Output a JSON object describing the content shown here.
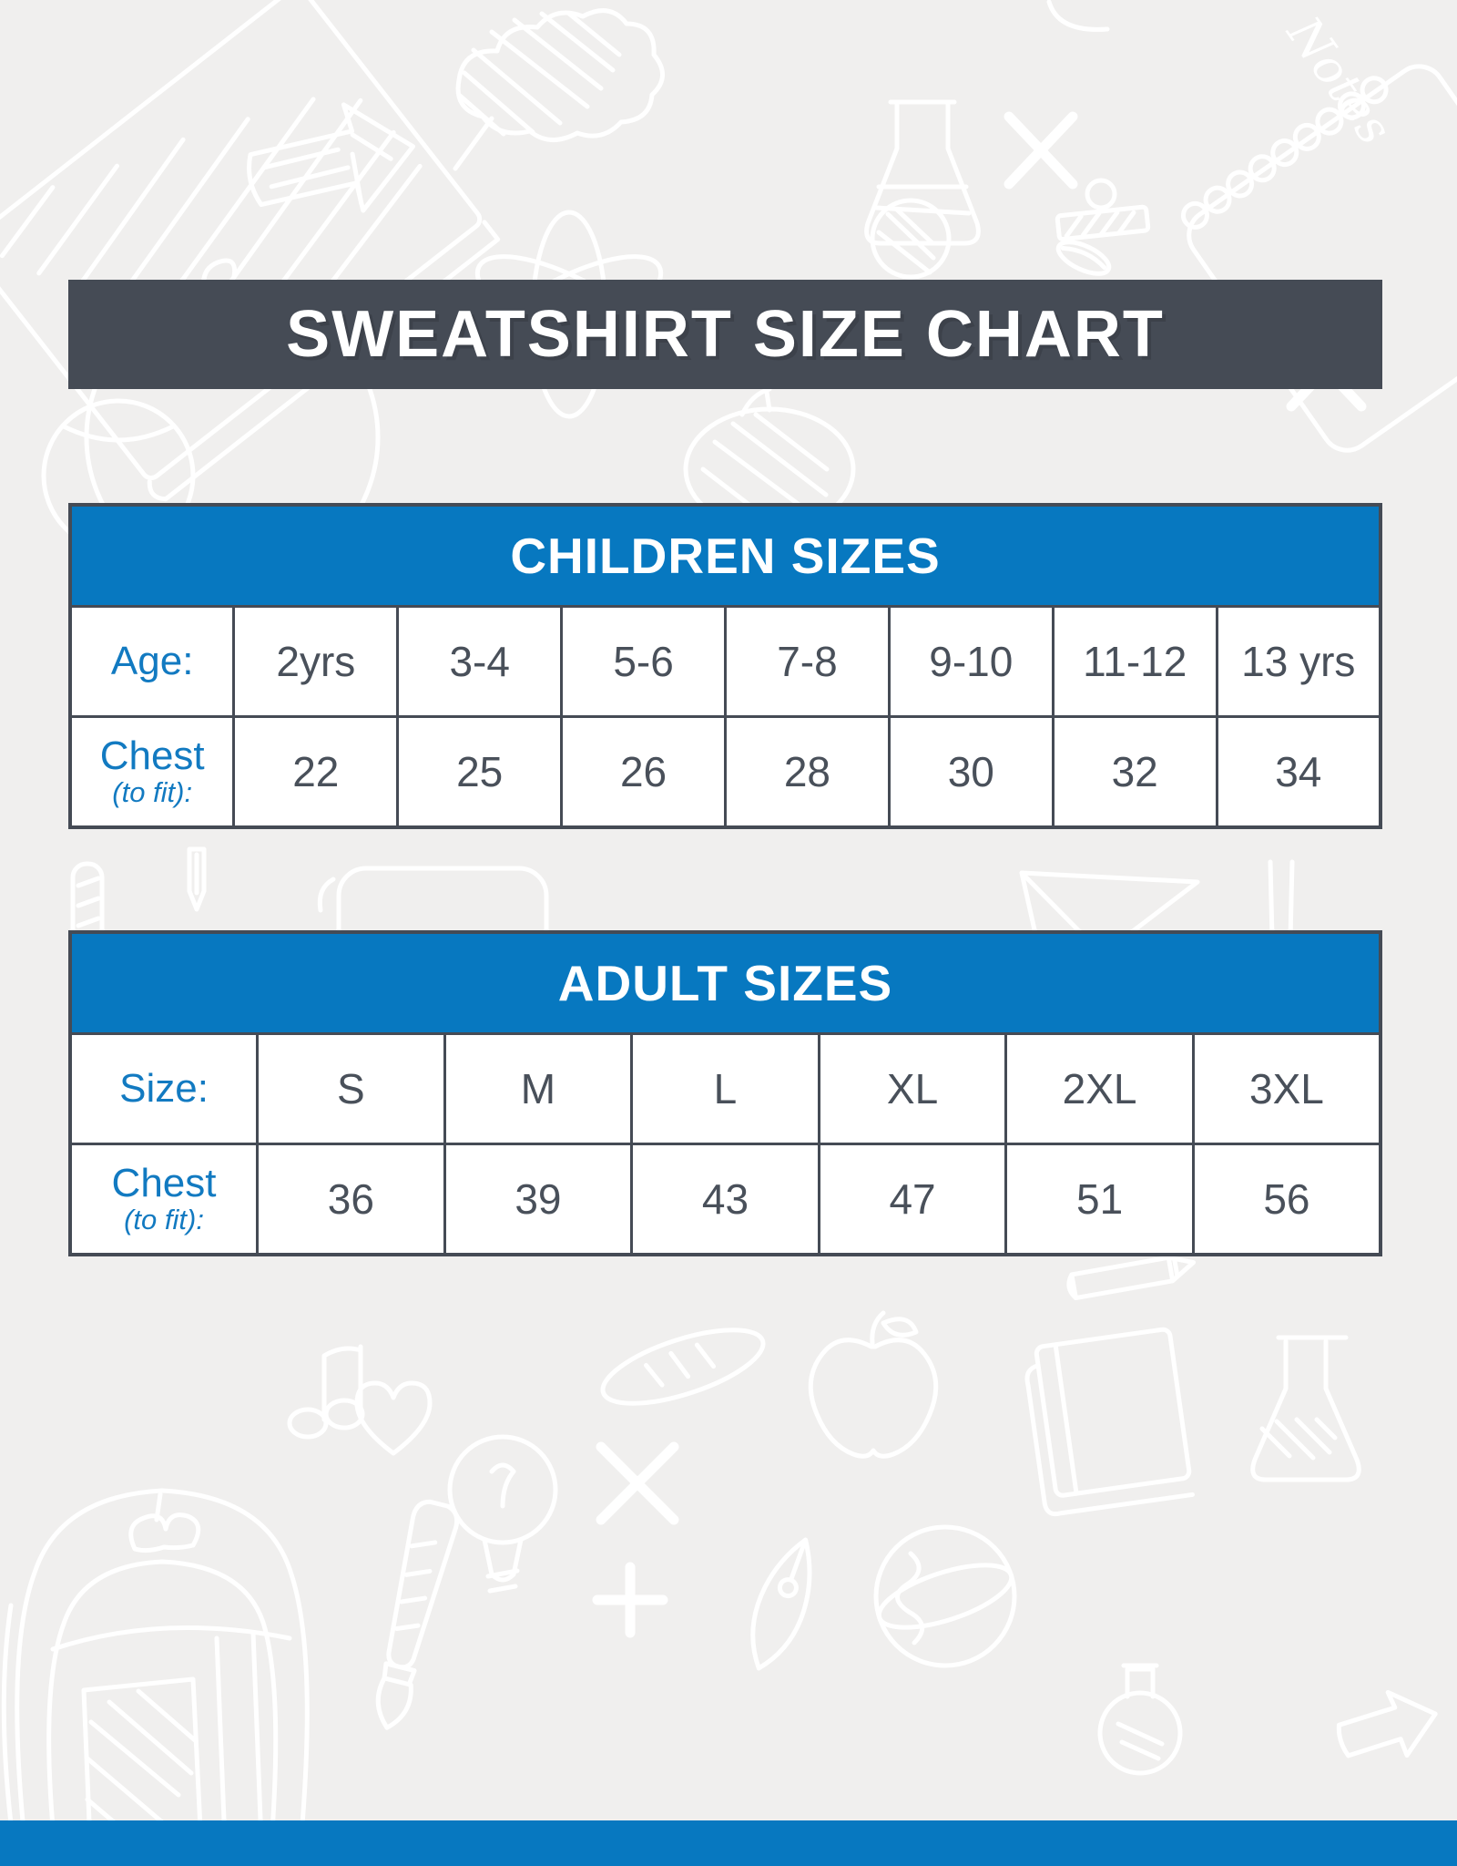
{
  "page": {
    "background": "#f0efee",
    "accent_blue": "#0778c0",
    "dark_slate": "#454b55",
    "label_blue": "#127ac1",
    "cell_text": "#49505a"
  },
  "title": "SWEATSHIRT SIZE CHART",
  "tables": [
    {
      "header": "CHILDREN SIZES",
      "rows": [
        {
          "label": "Age:",
          "sub": "",
          "values": [
            "2yrs",
            "3-4",
            "5-6",
            "7-8",
            "9-10",
            "11-12",
            "13 yrs"
          ]
        },
        {
          "label": "Chest",
          "sub": "(to fit):",
          "values": [
            "22",
            "25",
            "26",
            "28",
            "30",
            "32",
            "34"
          ]
        }
      ]
    },
    {
      "header": "ADULT SIZES",
      "rows": [
        {
          "label": "Size:",
          "sub": "",
          "values": [
            "S",
            "M",
            "L",
            "XL",
            "2XL",
            "3XL"
          ]
        },
        {
          "label": "Chest",
          "sub": "(to fit):",
          "values": [
            "36",
            "39",
            "43",
            "47",
            "51",
            "56"
          ]
        }
      ]
    }
  ],
  "doodles": {
    "notes_label": "Notes"
  },
  "chart_data": [
    {
      "type": "table",
      "title": "CHILDREN SIZES",
      "row_axis": "Age:",
      "columns": [
        "2yrs",
        "3-4",
        "5-6",
        "7-8",
        "9-10",
        "11-12",
        "13 yrs"
      ],
      "rows": [
        {
          "label": "Chest (to fit):",
          "values": [
            22,
            25,
            26,
            28,
            30,
            32,
            34
          ]
        }
      ]
    },
    {
      "type": "table",
      "title": "ADULT SIZES",
      "row_axis": "Size:",
      "columns": [
        "S",
        "M",
        "L",
        "XL",
        "2XL",
        "3XL"
      ],
      "rows": [
        {
          "label": "Chest (to fit):",
          "values": [
            36,
            39,
            43,
            47,
            51,
            56
          ]
        }
      ]
    }
  ]
}
